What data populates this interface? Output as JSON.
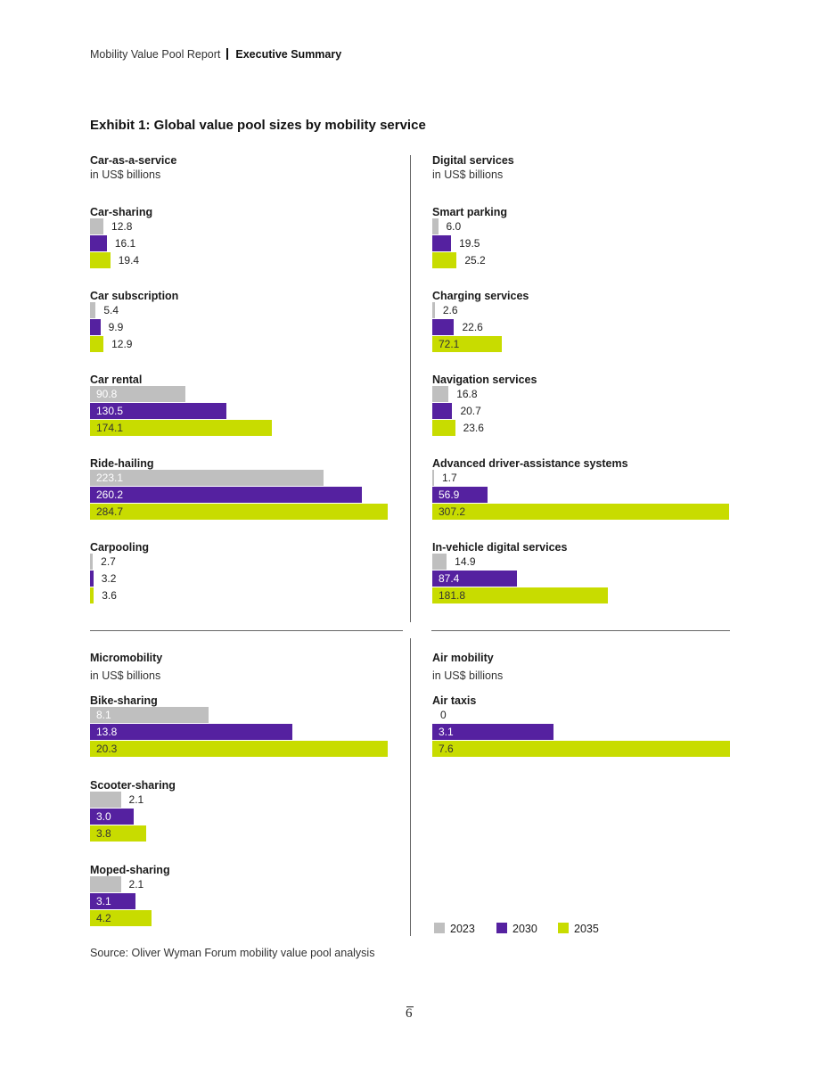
{
  "header": {
    "report": "Mobility Value Pool Report",
    "section": "Executive Summary"
  },
  "exhibit_title": "Exhibit 1: Global value pool sizes by mobility service",
  "source": "Source: Oliver Wyman Forum mobility value pool analysis",
  "page_number": "6",
  "colors": {
    "2023": "#bfbfbf",
    "2030": "#5521a0",
    "2035": "#c8dc00"
  },
  "chart_data": [
    {
      "type": "bar",
      "orientation": "horizontal",
      "title": "Car-as-a-service",
      "unit": "in US$ billions",
      "series_names": [
        "2023",
        "2030",
        "2035"
      ],
      "categories": [
        {
          "name": "Car-sharing",
          "values": [
            12.8,
            16.1,
            19.4
          ],
          "labels": [
            "12.8",
            "16.1",
            "19.4"
          ]
        },
        {
          "name": "Car subscription",
          "values": [
            5.4,
            9.9,
            12.9
          ],
          "labels": [
            "5.4",
            "9.9",
            "12.9"
          ]
        },
        {
          "name": "Car rental",
          "values": [
            90.8,
            130.5,
            174.1
          ],
          "labels": [
            "90.8",
            "130.5",
            "174.1"
          ]
        },
        {
          "name": "Ride-hailing",
          "values": [
            223.1,
            260.2,
            284.7
          ],
          "labels": [
            "223.1",
            "260.2",
            "284.7"
          ]
        },
        {
          "name": "Carpooling",
          "values": [
            2.7,
            3.2,
            3.6
          ],
          "labels": [
            "2.7",
            "3.2",
            "3.6"
          ]
        }
      ]
    },
    {
      "type": "bar",
      "orientation": "horizontal",
      "title": "Digital services",
      "unit": "in US$ billions",
      "series_names": [
        "2023",
        "2030",
        "2035"
      ],
      "categories": [
        {
          "name": "Smart parking",
          "values": [
            6.0,
            19.5,
            25.2
          ],
          "labels": [
            "6.0",
            "19.5",
            "25.2"
          ]
        },
        {
          "name": "Charging services",
          "values": [
            2.6,
            22.6,
            72.1
          ],
          "labels": [
            "2.6",
            "22.6",
            "72.1"
          ]
        },
        {
          "name": "Navigation services",
          "values": [
            16.8,
            20.7,
            23.6
          ],
          "labels": [
            "16.8",
            "20.7",
            "23.6"
          ]
        },
        {
          "name": "Advanced driver-assistance systems",
          "values": [
            1.7,
            56.9,
            307.2
          ],
          "labels": [
            "1.7",
            "56.9",
            "307.2"
          ]
        },
        {
          "name": "In-vehicle digital services",
          "values": [
            14.9,
            87.4,
            181.8
          ],
          "labels": [
            "14.9",
            "87.4",
            "181.8"
          ]
        }
      ]
    },
    {
      "type": "bar",
      "orientation": "horizontal",
      "title": "Micromobility",
      "unit": "in US$ billions",
      "series_names": [
        "2023",
        "2030",
        "2035"
      ],
      "categories": [
        {
          "name": "Bike-sharing",
          "values": [
            8.1,
            13.8,
            20.3
          ],
          "labels": [
            "8.1",
            "13.8",
            "20.3"
          ]
        },
        {
          "name": "Scooter-sharing",
          "values": [
            2.1,
            3.0,
            3.8
          ],
          "labels": [
            "2.1",
            "3.0",
            "3.8"
          ]
        },
        {
          "name": "Moped-sharing",
          "values": [
            2.1,
            3.1,
            4.2
          ],
          "labels": [
            "2.1",
            "3.1",
            "4.2"
          ]
        }
      ]
    },
    {
      "type": "bar",
      "orientation": "horizontal",
      "title": "Air mobility",
      "unit": "in US$ billions",
      "series_names": [
        "2023",
        "2030",
        "2035"
      ],
      "categories": [
        {
          "name": "Air taxis",
          "values": [
            0,
            3.1,
            7.6
          ],
          "labels": [
            "0",
            "3.1",
            "7.6"
          ]
        }
      ]
    }
  ],
  "legend": [
    {
      "label": "2023",
      "color": "#bfbfbf"
    },
    {
      "label": "2030",
      "color": "#5521a0"
    },
    {
      "label": "2035",
      "color": "#c8dc00"
    }
  ]
}
